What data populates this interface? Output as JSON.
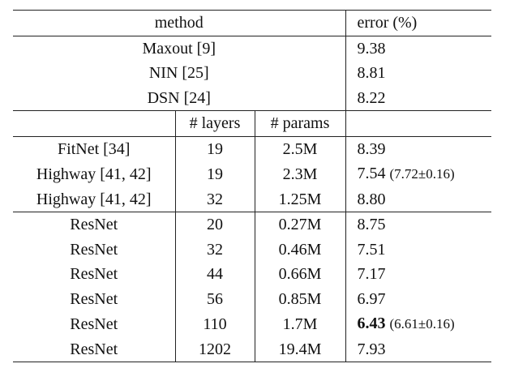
{
  "headers": {
    "method": "method",
    "error": "error (%)",
    "layers": "# layers",
    "params": "# params"
  },
  "prior_methods": [
    {
      "method": "Maxout [9]",
      "error": "9.38"
    },
    {
      "method": "NIN [25]",
      "error": "8.81"
    },
    {
      "method": "DSN [24]",
      "error": "8.22"
    }
  ],
  "highway_group": [
    {
      "method": "FitNet [34]",
      "layers": "19",
      "params": "2.5M",
      "error": "8.39",
      "note": ""
    },
    {
      "method": "Highway [41, 42]",
      "layers": "19",
      "params": "2.3M",
      "error": "7.54",
      "note": "(7.72±0.16)"
    },
    {
      "method": "Highway [41, 42]",
      "layers": "32",
      "params": "1.25M",
      "error": "8.80",
      "note": ""
    }
  ],
  "resnet_group": [
    {
      "method": "ResNet",
      "layers": "20",
      "params": "0.27M",
      "error": "8.75",
      "note": ""
    },
    {
      "method": "ResNet",
      "layers": "32",
      "params": "0.46M",
      "error": "7.51",
      "note": ""
    },
    {
      "method": "ResNet",
      "layers": "44",
      "params": "0.66M",
      "error": "7.17",
      "note": ""
    },
    {
      "method": "ResNet",
      "layers": "56",
      "params": "0.85M",
      "error": "6.97",
      "note": ""
    },
    {
      "method": "ResNet",
      "layers": "110",
      "params": "1.7M",
      "error": "6.43",
      "note": "(6.61±0.16)",
      "best": true
    },
    {
      "method": "ResNet",
      "layers": "1202",
      "params": "19.4M",
      "error": "7.93",
      "note": ""
    }
  ]
}
